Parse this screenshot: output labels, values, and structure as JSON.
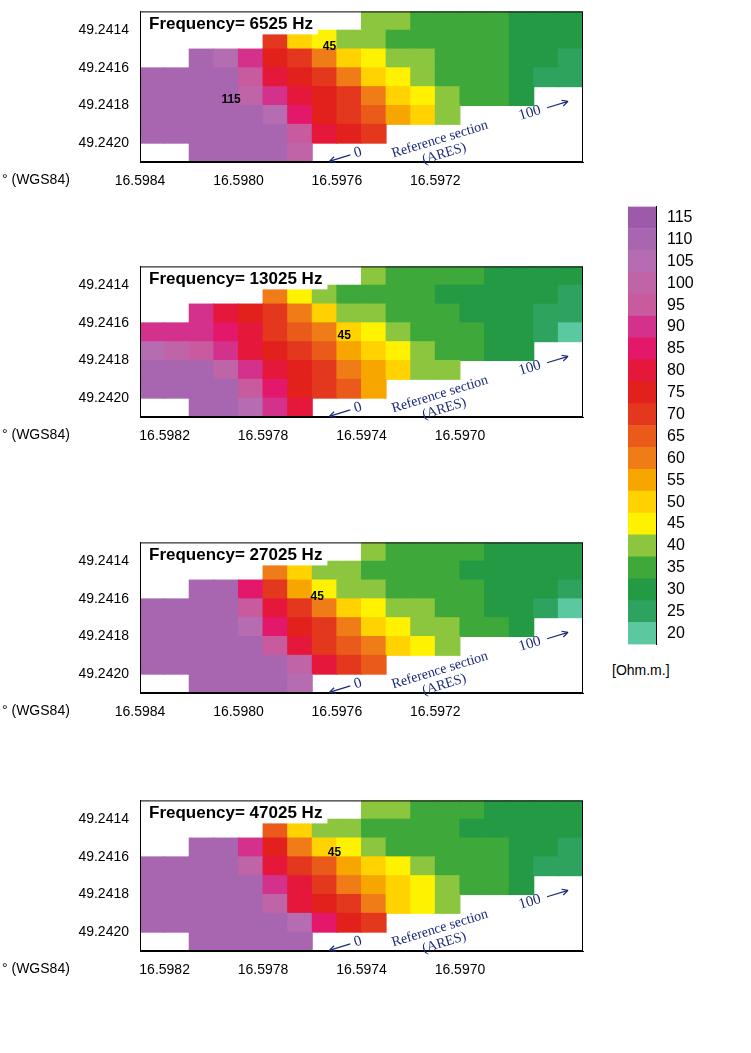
{
  "chart_data": [
    {
      "type": "heatmap",
      "title": "Frequency= 6525 Hz",
      "xlabel": "° (WGS84)",
      "grid": false,
      "xlim": [
        16.5984,
        16.5966
      ],
      "ylim": [
        49.2421,
        49.2413
      ],
      "xticks": [
        16.5984,
        {
          "value": 16.598,
          "label": "16.5980"
        },
        16.5976,
        16.5972
      ],
      "yticks": [
        49.2414,
        49.2416,
        49.2418,
        {
          "value": 49.242,
          "label": "49.2420"
        }
      ],
      "x": [
        16.59835,
        16.59825,
        16.59815,
        16.59805,
        16.59795,
        16.59785,
        16.59775,
        16.59765,
        16.59755,
        16.59745,
        16.59735,
        16.59725,
        16.59715,
        16.59705,
        16.59695,
        16.59685,
        16.59675,
        16.59665
      ],
      "y": [
        49.24135,
        49.24145,
        49.24155,
        49.24165,
        49.24175,
        49.24185,
        49.24195,
        49.24205
      ],
      "cells": [
        [
          null,
          null,
          null,
          null,
          null,
          null,
          null,
          null,
          null,
          42,
          38,
          36,
          35,
          34,
          33,
          32,
          31,
          30
        ],
        [
          null,
          null,
          null,
          null,
          null,
          70,
          52,
          44,
          40,
          38,
          37,
          36,
          35,
          34,
          33,
          32,
          31,
          30
        ],
        [
          null,
          null,
          112,
          105,
          90,
          75,
          68,
          58,
          48,
          43,
          40,
          38,
          36,
          35,
          34,
          32,
          30,
          27
        ],
        [
          112,
          112,
          112,
          108,
          95,
          80,
          75,
          68,
          60,
          50,
          44,
          40,
          37,
          35,
          33,
          30,
          26,
          23
        ],
        [
          112,
          112,
          112,
          112,
          100,
          88,
          78,
          73,
          68,
          60,
          52,
          46,
          41,
          37,
          34,
          30,
          null,
          null
        ],
        [
          112,
          112,
          112,
          112,
          112,
          105,
          85,
          76,
          72,
          65,
          56,
          48,
          42,
          null,
          null,
          null,
          null,
          null
        ],
        [
          112,
          112,
          112,
          112,
          112,
          112,
          95,
          80,
          76,
          70,
          null,
          null,
          null,
          null,
          null,
          null,
          null,
          null
        ],
        [
          null,
          null,
          112,
          112,
          112,
          112,
          100,
          null,
          null,
          null,
          null,
          null,
          null,
          null,
          null,
          null,
          null,
          null
        ]
      ],
      "contour_labels": [
        {
          "label": "45",
          "x": 16.59763,
          "y": 49.24149
        },
        {
          "label": "115",
          "x": 16.59803,
          "y": 49.24177
        }
      ],
      "section_lines": [
        "Reference section",
        "(ARES)"
      ],
      "section_start": 0,
      "section_end": 100
    },
    {
      "type": "heatmap",
      "title": "Frequency= 13025 Hz",
      "xlabel": "° (WGS84)",
      "grid": false,
      "xlim": [
        16.5983,
        16.5965
      ],
      "ylim": [
        49.2421,
        49.2413
      ],
      "xticks": [
        16.5982,
        16.5978,
        16.5974,
        {
          "value": 16.597,
          "label": "16.5970"
        }
      ],
      "yticks": [
        49.2414,
        49.2416,
        49.2418,
        {
          "value": 49.242,
          "label": "49.2420"
        }
      ],
      "x": [
        16.59825,
        16.59815,
        16.59805,
        16.59795,
        16.59785,
        16.59775,
        16.59765,
        16.59755,
        16.59745,
        16.59735,
        16.59725,
        16.59715,
        16.59705,
        16.59695,
        16.59685,
        16.59675,
        16.59665,
        16.59655
      ],
      "y": [
        49.24135,
        49.24145,
        49.24155,
        49.24165,
        49.24175,
        49.24185,
        49.24195,
        49.24205
      ],
      "cells": [
        [
          null,
          null,
          null,
          null,
          null,
          null,
          null,
          null,
          null,
          40,
          36,
          35,
          34,
          33,
          32,
          31,
          30,
          29
        ],
        [
          null,
          null,
          null,
          null,
          null,
          60,
          46,
          40,
          37,
          35,
          34,
          33,
          32,
          31,
          30,
          29,
          28,
          27
        ],
        [
          null,
          null,
          88,
          82,
          75,
          68,
          58,
          48,
          42,
          38,
          36,
          35,
          33,
          32,
          31,
          29,
          27,
          25
        ],
        [
          90,
          88,
          90,
          85,
          80,
          72,
          65,
          58,
          52,
          46,
          40,
          37,
          35,
          33,
          31,
          29,
          25,
          22
        ],
        [
          105,
          100,
          95,
          88,
          82,
          76,
          70,
          64,
          57,
          50,
          44,
          39,
          36,
          33,
          31,
          28,
          null,
          null
        ],
        [
          112,
          112,
          110,
          100,
          88,
          80,
          74,
          68,
          62,
          55,
          48,
          42,
          38,
          null,
          null,
          null,
          null,
          null
        ],
        [
          112,
          112,
          112,
          108,
          95,
          84,
          76,
          70,
          64,
          57,
          null,
          null,
          null,
          null,
          null,
          null,
          null,
          null
        ],
        [
          null,
          null,
          112,
          112,
          105,
          90,
          80,
          null,
          null,
          null,
          null,
          null,
          null,
          null,
          null,
          null,
          null,
          null
        ]
      ],
      "contour_labels": [
        {
          "label": "45",
          "x": 16.59747,
          "y": 49.24167
        }
      ],
      "section_lines": [
        "Reference section",
        "(ARES)"
      ],
      "section_start": 0,
      "section_end": 100
    },
    {
      "type": "heatmap",
      "title": "Frequency= 27025 Hz",
      "xlabel": "° (WGS84)",
      "grid": false,
      "xlim": [
        16.5984,
        16.5966
      ],
      "ylim": [
        49.2421,
        49.2413
      ],
      "xticks": [
        16.5984,
        {
          "value": 16.598,
          "label": "16.5980"
        },
        16.5976,
        16.5972
      ],
      "yticks": [
        49.2414,
        49.2416,
        49.2418,
        {
          "value": 49.242,
          "label": "49.2420"
        }
      ],
      "x": [
        16.59835,
        16.59825,
        16.59815,
        16.59805,
        16.59795,
        16.59785,
        16.59775,
        16.59765,
        16.59755,
        16.59745,
        16.59735,
        16.59725,
        16.59715,
        16.59705,
        16.59695,
        16.59685,
        16.59675,
        16.59665
      ],
      "y": [
        49.24135,
        49.24145,
        49.24155,
        49.24165,
        49.24175,
        49.24185,
        49.24195,
        49.24205
      ],
      "cells": [
        [
          null,
          null,
          null,
          null,
          null,
          null,
          null,
          null,
          null,
          40,
          37,
          35,
          34,
          33,
          32,
          31,
          30,
          29
        ],
        [
          null,
          null,
          null,
          null,
          null,
          62,
          48,
          41,
          38,
          36,
          35,
          34,
          33,
          32,
          31,
          30,
          29,
          28
        ],
        [
          null,
          null,
          112,
          108,
          85,
          70,
          56,
          47,
          42,
          39,
          37,
          35,
          34,
          33,
          32,
          30,
          28,
          25
        ],
        [
          112,
          112,
          112,
          110,
          95,
          78,
          70,
          60,
          52,
          46,
          42,
          38,
          36,
          34,
          32,
          30,
          26,
          22
        ],
        [
          112,
          112,
          112,
          112,
          105,
          85,
          75,
          68,
          60,
          52,
          46,
          42,
          38,
          35,
          33,
          30,
          null,
          null
        ],
        [
          112,
          112,
          112,
          112,
          112,
          95,
          78,
          72,
          66,
          58,
          50,
          45,
          40,
          null,
          null,
          null,
          null,
          null
        ],
        [
          112,
          112,
          112,
          112,
          112,
          112,
          100,
          80,
          72,
          66,
          null,
          null,
          null,
          null,
          null,
          null,
          null,
          null
        ],
        [
          null,
          null,
          112,
          112,
          112,
          112,
          105,
          null,
          null,
          null,
          null,
          null,
          null,
          null,
          null,
          null,
          null,
          null
        ]
      ],
      "contour_labels": [
        {
          "label": "45",
          "x": 16.59768,
          "y": 49.24159
        }
      ],
      "section_lines": [
        "Reference section",
        "(ARES)"
      ],
      "section_start": 0,
      "section_end": 100
    },
    {
      "type": "heatmap",
      "title": "Frequency= 47025 Hz",
      "xlabel": "° (WGS84)",
      "grid": false,
      "xlim": [
        16.5983,
        16.5965
      ],
      "ylim": [
        49.2421,
        49.2413
      ],
      "xticks": [
        16.5982,
        16.5978,
        16.5974,
        {
          "value": 16.597,
          "label": "16.5970"
        }
      ],
      "yticks": [
        49.2414,
        49.2416,
        49.2418,
        {
          "value": 49.242,
          "label": "49.2420"
        }
      ],
      "x": [
        16.59825,
        16.59815,
        16.59805,
        16.59795,
        16.59785,
        16.59775,
        16.59765,
        16.59755,
        16.59745,
        16.59735,
        16.59725,
        16.59715,
        16.59705,
        16.59695,
        16.59685,
        16.59675,
        16.59665,
        16.59655
      ],
      "y": [
        49.24135,
        49.24145,
        49.24155,
        49.24165,
        49.24175,
        49.24185,
        49.24195,
        49.24205
      ],
      "cells": [
        [
          null,
          null,
          null,
          null,
          null,
          null,
          null,
          null,
          null,
          42,
          38,
          36,
          34,
          33,
          32,
          31,
          30,
          29
        ],
        [
          null,
          null,
          null,
          null,
          null,
          65,
          50,
          42,
          38,
          36,
          35,
          34,
          33,
          32,
          31,
          30,
          29,
          28
        ],
        [
          null,
          null,
          112,
          110,
          90,
          75,
          60,
          48,
          43,
          40,
          37,
          36,
          35,
          34,
          33,
          31,
          29,
          26
        ],
        [
          112,
          112,
          112,
          112,
          100,
          82,
          72,
          63,
          55,
          48,
          43,
          40,
          37,
          35,
          33,
          31,
          27,
          23
        ],
        [
          112,
          112,
          112,
          112,
          108,
          90,
          78,
          70,
          62,
          55,
          48,
          43,
          39,
          36,
          34,
          31,
          null,
          null
        ],
        [
          112,
          112,
          112,
          112,
          112,
          100,
          82,
          74,
          68,
          60,
          52,
          46,
          42,
          null,
          null,
          null,
          null,
          null
        ],
        [
          112,
          112,
          112,
          112,
          112,
          112,
          105,
          85,
          75,
          68,
          null,
          null,
          null,
          null,
          null,
          null,
          null,
          null
        ],
        [
          null,
          null,
          112,
          112,
          112,
          112,
          108,
          null,
          null,
          null,
          null,
          null,
          null,
          null,
          null,
          null,
          null,
          null
        ]
      ],
      "contour_labels": [
        {
          "label": "45",
          "x": 16.59751,
          "y": 49.24158
        }
      ],
      "section_lines": [
        "Reference section",
        "(ARES)"
      ],
      "section_start": 0,
      "section_end": 100
    }
  ],
  "colorbar": {
    "label": "[Ohm.m.]",
    "range": [
      17.5,
      117.5
    ],
    "ticks": [
      20,
      25,
      30,
      35,
      40,
      45,
      50,
      55,
      60,
      65,
      70,
      75,
      80,
      85,
      90,
      95,
      100,
      105,
      110,
      115
    ],
    "colors": [
      "#5cc8a0",
      "#2ea35f",
      "#249a45",
      "#3fa83a",
      "#8cc63f",
      "#fff200",
      "#ffd200",
      "#f7a600",
      "#f07c18",
      "#ea5a1a",
      "#e3371e",
      "#e2211d",
      "#e5173a",
      "#e3186a",
      "#d4318c",
      "#c85a9e",
      "#c064a8",
      "#b56cb0",
      "#a966b0",
      "#9c5aa8"
    ]
  }
}
